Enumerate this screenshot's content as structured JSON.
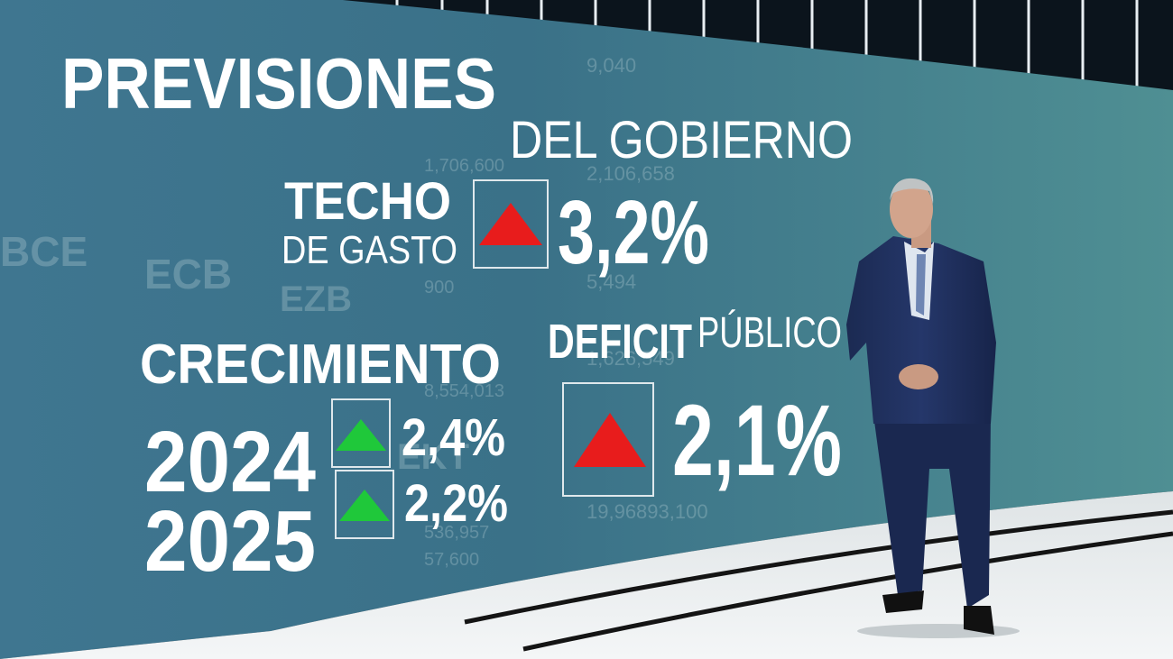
{
  "header": {
    "title": "PREVISIONES",
    "subtitle": "DEL GOBIERNO"
  },
  "techo": {
    "label": "TECHO",
    "sublabel": "DE GASTO",
    "value": "3,2%"
  },
  "crecimiento": {
    "title": "CRECIMIENTO",
    "rows": [
      {
        "year": "2024",
        "value": "2,4%"
      },
      {
        "year": "2025",
        "value": "2,2%"
      }
    ]
  },
  "deficit": {
    "label": "DEFICIT",
    "sublabel": "PÚBLICO",
    "value": "2,1%"
  },
  "background": {
    "texts": [
      "BCE",
      "ECB",
      "EZB",
      "EKT",
      "9,040",
      "1,706,600",
      "2,106,658",
      "5,494",
      "900",
      "8,554,013",
      "1,626,549",
      "19,96893,100",
      "536,957",
      "57,600"
    ]
  }
}
